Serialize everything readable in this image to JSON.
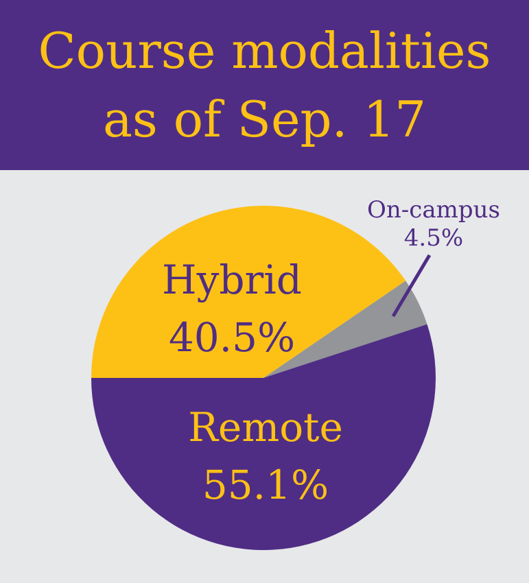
{
  "header": {
    "title_line1": "Course modalities",
    "title_line2": "as of Sep. 17"
  },
  "colors": {
    "header_bg": "#4f2d84",
    "title": "#fdc116",
    "background": "#e7e8ea",
    "hybrid": "#fdc116",
    "on_campus": "#939598",
    "remote": "#4f2d84"
  },
  "chart_data": {
    "type": "pie",
    "title": "Course modalities as of Sep. 17",
    "slices": [
      {
        "label": "Hybrid",
        "value": 40.5,
        "value_label": "40.5%",
        "color": "#fdc116",
        "text_color": "#4f2d84"
      },
      {
        "label": "On-campus",
        "value": 4.5,
        "value_label": "4.5%",
        "color": "#939598",
        "text_color": "#4f2d84"
      },
      {
        "label": "Remote",
        "value": 55.1,
        "value_label": "55.1%",
        "color": "#4f2d84",
        "text_color": "#fdc116"
      }
    ]
  }
}
